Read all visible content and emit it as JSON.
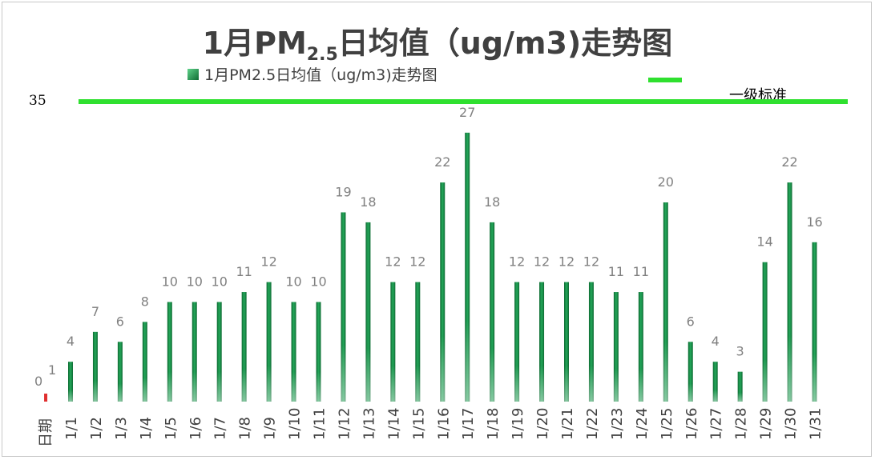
{
  "chart_data": {
    "type": "bar",
    "title": {
      "prefix": "1月PM",
      "subscript": "2.5",
      "suffix": "日均值（ug/m3)走势图"
    },
    "legend": {
      "series_label": "1月PM2.5日均值（ug/m3)走势图",
      "reference_label": "一级标准"
    },
    "xlabel": "日期",
    "categories": [
      "1/1",
      "1/2",
      "1/3",
      "1/4",
      "1/5",
      "1/6",
      "1/7",
      "1/8",
      "1/9",
      "1/10",
      "1/11",
      "1/12",
      "1/13",
      "1/14",
      "1/15",
      "1/16",
      "1/17",
      "1/18",
      "1/19",
      "1/20",
      "1/21",
      "1/22",
      "1/23",
      "1/24",
      "1/25",
      "1/26",
      "1/27",
      "1/28",
      "1/29",
      "1/30",
      "1/31"
    ],
    "series": [
      {
        "name": "1月PM2.5日均值（ug/m3)走势图",
        "values": [
          4,
          7,
          6,
          8,
          10,
          10,
          10,
          11,
          12,
          10,
          10,
          19,
          18,
          12,
          12,
          22,
          27,
          18,
          12,
          12,
          12,
          12,
          11,
          11,
          20,
          6,
          4,
          3,
          14,
          22,
          16
        ],
        "color": "#1a8c4a"
      }
    ],
    "extra_category": {
      "label": "日期",
      "value": 0,
      "color": "#e03030"
    },
    "stray_label": "1",
    "reference_line": {
      "name": "一级标准",
      "value": "35",
      "color": "#2fe02f"
    },
    "ylim": [
      0,
      27
    ],
    "grid": false,
    "legend_position": "top"
  }
}
